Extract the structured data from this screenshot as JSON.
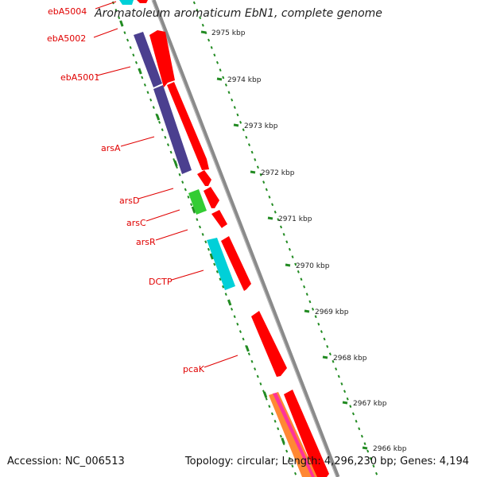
{
  "title": "Aromatoleum aromaticum EbN1, complete genome",
  "footer": {
    "accession": "Accession: NC_006513",
    "topology": "Topology: circular; Length: 4,296,230 bp; Genes: 4,194"
  },
  "colors": {
    "forward_gene": "#ff0000",
    "reverse_gene_purple": "#4b3f8f",
    "reverse_gene_cyan": "#00d0d8",
    "reverse_gene_green": "#33cc33",
    "backbone": "#888888",
    "tick": "#228b22",
    "label": "#e00000"
  },
  "gene_labels": [
    {
      "name": "ebA5004"
    },
    {
      "name": "ebA5002"
    },
    {
      "name": "ebA5001"
    },
    {
      "name": "arsA"
    },
    {
      "name": "arsD"
    },
    {
      "name": "arsC"
    },
    {
      "name": "arsR"
    },
    {
      "name": "DCTP"
    },
    {
      "name": "pcaK"
    }
  ],
  "position_ticks": [
    {
      "label": "2975 kbp"
    },
    {
      "label": "2974 kbp"
    },
    {
      "label": "2973 kbp"
    },
    {
      "label": "2972 kbp"
    },
    {
      "label": "2971 kbp"
    },
    {
      "label": "2970 kbp"
    },
    {
      "label": "2969 kbp"
    },
    {
      "label": "2968 kbp"
    },
    {
      "label": "2967 kbp"
    },
    {
      "label": "2966 kbp"
    }
  ]
}
